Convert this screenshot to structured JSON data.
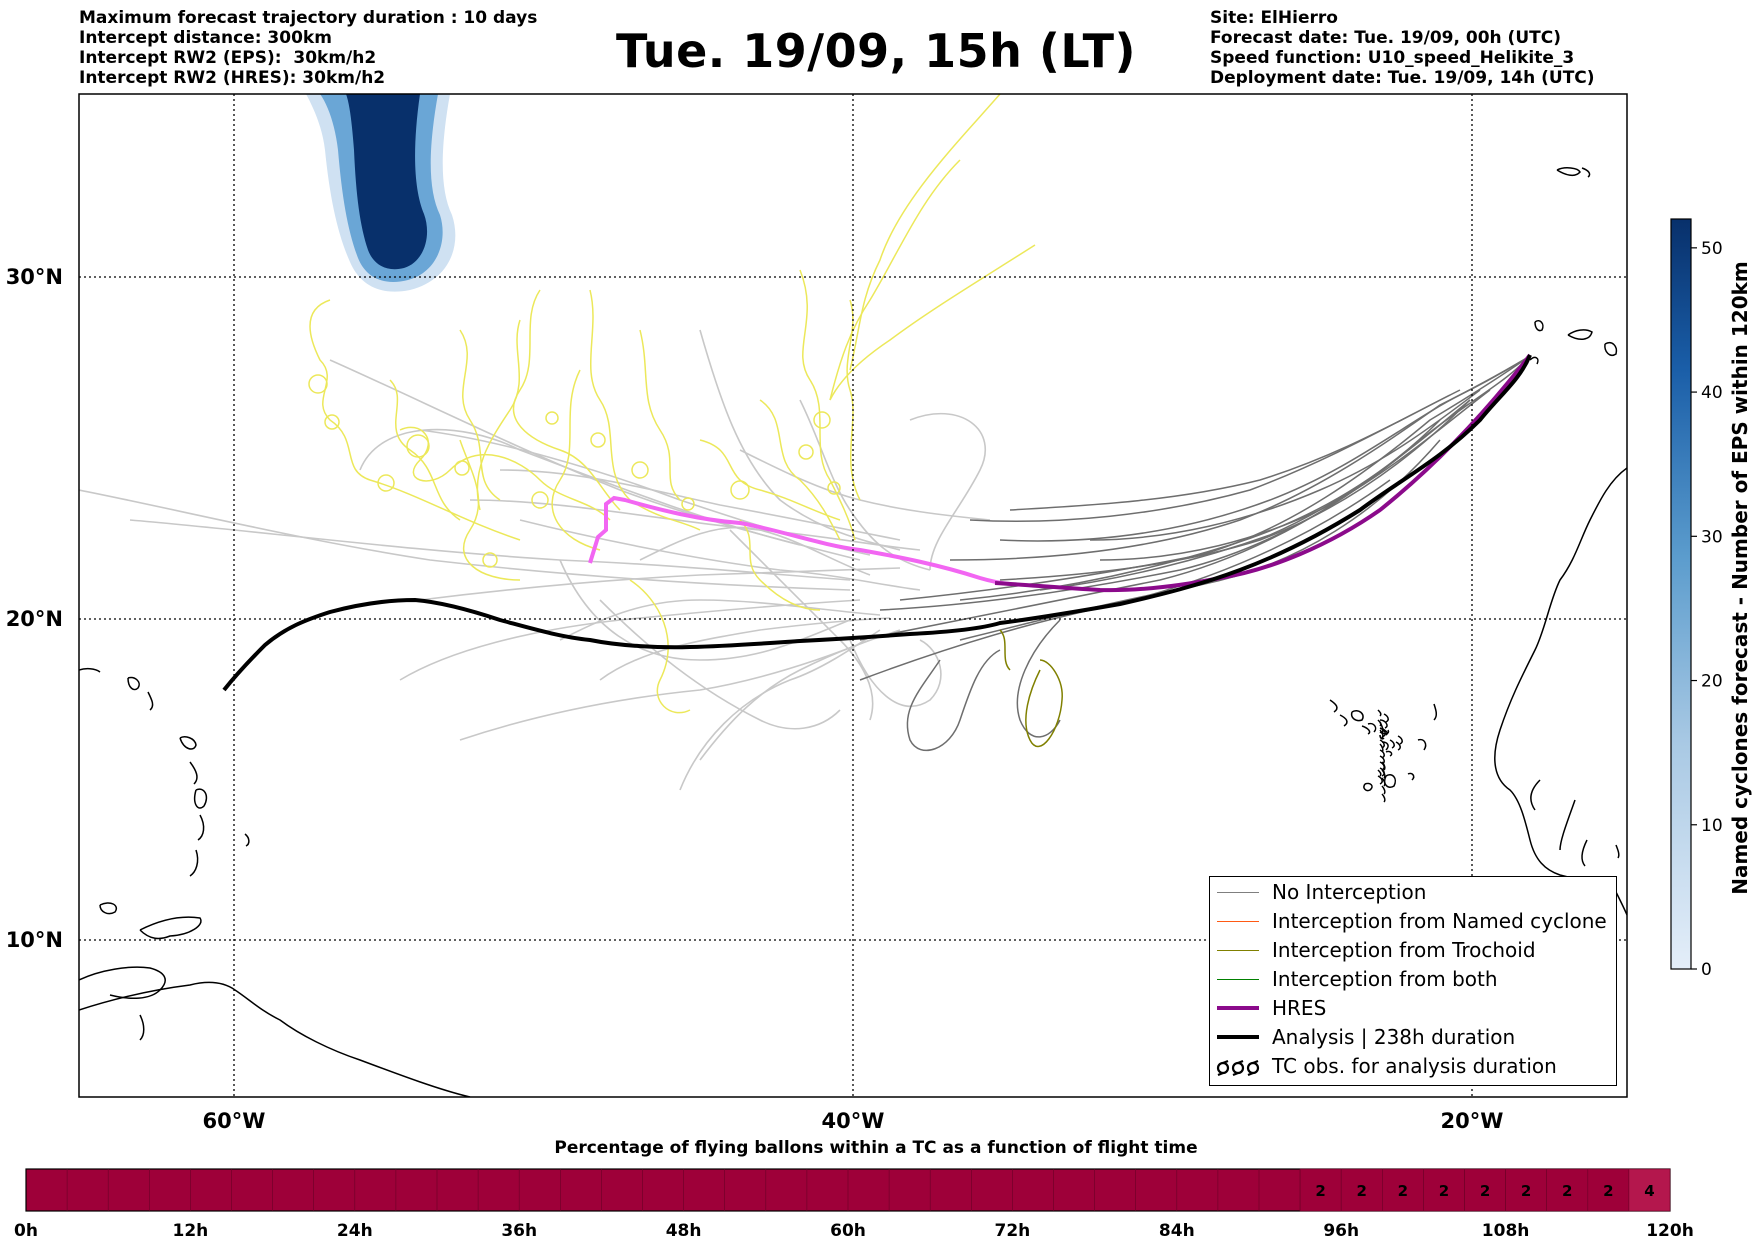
{
  "header_left": {
    "line1": "Maximum forecast trajectory duration : 10 days",
    "line2": "Intercept distance: 300km",
    "line3": "Intercept RW2 (EPS):  30km/h2",
    "line4": "Intercept RW2 (HRES): 30km/h2"
  },
  "title": "Tue. 19/09, 15h (LT)",
  "header_right": {
    "line1": "Site: ElHierro",
    "line2": "Forecast date: Tue. 19/09, 00h (UTC)",
    "line3": "Speed function: U10_speed_Helikite_3",
    "line4": "Deployment date: Tue. 19/09, 14h (UTC)"
  },
  "map": {
    "lat_labels": [
      "30°N",
      "20°N",
      "10°N"
    ],
    "lon_labels": [
      "60°W",
      "40°W",
      "20°W"
    ],
    "lat_values": [
      30,
      20,
      10
    ],
    "lon_values": [
      -60,
      -40,
      -20
    ],
    "extent": {
      "lon_min": -65,
      "lon_max": -15,
      "lat_min": 5.4,
      "lat_max": 34.7
    },
    "analysis_track": [
      [
        -60.3,
        17.7
      ],
      [
        -59,
        19
      ],
      [
        -57.5,
        19.9
      ],
      [
        -55,
        20.4
      ],
      [
        -53,
        20.4
      ],
      [
        -50,
        19.8
      ],
      [
        -48,
        19.2
      ],
      [
        -46,
        18.9
      ],
      [
        -44,
        19.1
      ],
      [
        -40,
        19.4
      ],
      [
        -37,
        19.6
      ],
      [
        -33,
        20.2
      ],
      [
        -29,
        21.0
      ],
      [
        -26.5,
        22.3
      ],
      [
        -24,
        24.0
      ],
      [
        -21,
        25.8
      ],
      [
        -18.2,
        27.6
      ]
    ],
    "hres_track": [
      [
        -48.6,
        21.7
      ],
      [
        -48.3,
        22.5
      ],
      [
        -48.2,
        23.3
      ],
      [
        -47.2,
        23.2
      ],
      [
        -44,
        22.6
      ],
      [
        -40,
        21.9
      ],
      [
        -37,
        21.3
      ],
      [
        -35,
        21.1
      ],
      [
        -32,
        20.9
      ],
      [
        -30,
        21.1
      ],
      [
        -28,
        21.3
      ],
      [
        -25.5,
        22.2
      ],
      [
        -23,
        23.8
      ],
      [
        -20,
        25.9
      ],
      [
        -18.2,
        27.6
      ]
    ]
  },
  "legend": {
    "items": [
      {
        "label": "No Interception",
        "color": "#7f7f7f"
      },
      {
        "label": "Interception from Named cyclone",
        "color": "#ff5a14"
      },
      {
        "label": "Interception from Trochoid",
        "color": "#808000"
      },
      {
        "label": "Interception from both",
        "color": "#008000"
      },
      {
        "label": "HRES",
        "color": "#8b0a8b"
      },
      {
        "label": "Analysis | 238h duration",
        "color": "#000000"
      },
      {
        "label": "TC obs. for analysis duration",
        "color": "#000000"
      }
    ]
  },
  "colorbar": {
    "label": "Named cyclones forecast - Number of EPS within 120km",
    "ticks": [
      "0",
      "10",
      "20",
      "30",
      "40",
      "50"
    ],
    "tick_values": [
      0,
      10,
      20,
      30,
      40,
      50
    ],
    "range": [
      0,
      52
    ],
    "color_low": "#e4eef9",
    "color_high": "#08306b"
  },
  "bottom_bar": {
    "title": "Percentage of flying ballons within a TC as a function of flight time",
    "time_labels": [
      "0h",
      "12h",
      "24h",
      "36h",
      "48h",
      "60h",
      "72h",
      "84h",
      "96h",
      "108h",
      "120h"
    ],
    "cell_values": [
      "2",
      "2",
      "2",
      "2",
      "2",
      "2",
      "2",
      "2",
      "4"
    ],
    "base_color": "#9e0039",
    "light_color": "#b4174d"
  }
}
